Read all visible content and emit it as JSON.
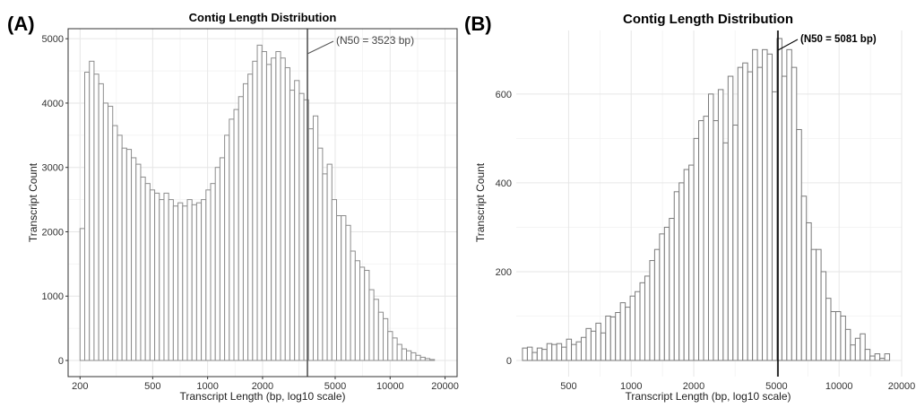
{
  "figure": {
    "panel_a_letter": "(A)",
    "panel_b_letter": "(B)"
  },
  "chart_data": [
    {
      "type": "bar",
      "panel": "(A)",
      "title": "Contig Length Distribution",
      "xlabel": "Transcript Length (bp, log10 scale)",
      "ylabel": "Transcript Count",
      "x_scale": "log10",
      "xlim": [
        180,
        22000
      ],
      "ylim": [
        0,
        5100
      ],
      "xticks": [
        200,
        500,
        1000,
        2000,
        5000,
        10000,
        20000
      ],
      "xtick_labels": [
        "200",
        "500",
        "1000",
        "2000",
        "5000",
        "10000",
        "20000"
      ],
      "yticks": [
        0,
        1000,
        2000,
        3000,
        4000,
        5000
      ],
      "ytick_labels": [
        "0",
        "1000",
        "2000",
        "3000",
        "4000",
        "5000"
      ],
      "bin_start": 200,
      "bin_end": 17500,
      "values": [
        2050,
        4480,
        4650,
        4450,
        4300,
        4000,
        3950,
        3650,
        3500,
        3300,
        3280,
        3150,
        3050,
        2850,
        2750,
        2650,
        2600,
        2500,
        2600,
        2500,
        2400,
        2450,
        2400,
        2500,
        2420,
        2450,
        2500,
        2650,
        2750,
        3000,
        3150,
        3500,
        3750,
        3900,
        4100,
        4300,
        4450,
        4650,
        4900,
        4800,
        4600,
        4700,
        4800,
        4700,
        4550,
        4200,
        4350,
        4150,
        4050,
        3600,
        3800,
        3300,
        2900,
        3050,
        2500,
        2250,
        2250,
        2100,
        1700,
        1550,
        1450,
        1400,
        1100,
        950,
        750,
        650,
        450,
        350,
        250,
        180,
        150,
        120,
        80,
        50,
        30,
        15
      ],
      "n50": 3523,
      "n50_label": "(N50 = 3523 bp)"
    },
    {
      "type": "bar",
      "panel": "(B)",
      "title": "Contig Length Distribution",
      "xlabel": "Transcript Length (bp, log10 scale)",
      "ylabel": "Transcript Count",
      "x_scale": "log10",
      "xlim": [
        280,
        20000
      ],
      "ylim": [
        0,
        735
      ],
      "xticks": [
        500,
        1000,
        2000,
        5000,
        10000,
        20000
      ],
      "xtick_labels": [
        "500",
        "1000",
        "2000",
        "5000",
        "10000",
        "20000"
      ],
      "yticks": [
        0,
        200,
        400,
        600
      ],
      "ytick_labels": [
        "0",
        "200",
        "400",
        "600"
      ],
      "bin_start": 300,
      "bin_end": 17500,
      "values": [
        28,
        30,
        18,
        28,
        25,
        38,
        36,
        38,
        30,
        48,
        36,
        42,
        52,
        72,
        66,
        84,
        62,
        100,
        98,
        108,
        130,
        120,
        145,
        155,
        175,
        190,
        225,
        250,
        285,
        300,
        320,
        380,
        400,
        430,
        440,
        500,
        540,
        550,
        600,
        540,
        610,
        490,
        640,
        530,
        660,
        670,
        650,
        700,
        660,
        700,
        690,
        605,
        725,
        640,
        700,
        660,
        520,
        370,
        310,
        250,
        250,
        200,
        140,
        110,
        110,
        100,
        70,
        35,
        50,
        60,
        25,
        10,
        15,
        5,
        15
      ]
    }
  ],
  "annotations": {
    "n50_b_label": "(N50 = 5081 bp)",
    "n50_b_value": 5081
  }
}
